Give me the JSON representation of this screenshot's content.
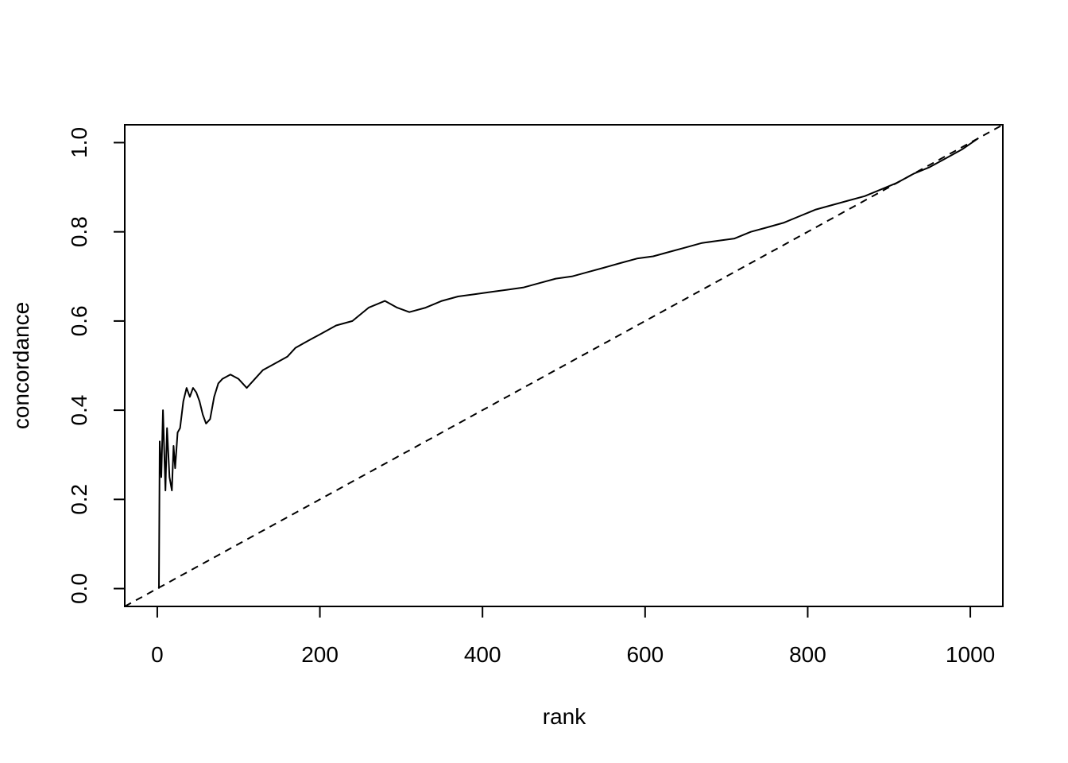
{
  "chart_data": {
    "type": "line",
    "title": "",
    "xlabel": "rank",
    "ylabel": "concordance",
    "xlim": [
      -40,
      1040
    ],
    "ylim": [
      -0.04,
      1.04
    ],
    "x_ticks": [
      0,
      200,
      400,
      600,
      800,
      1000
    ],
    "y_ticks": [
      0.0,
      0.2,
      0.4,
      0.6,
      0.8,
      1.0
    ],
    "x_tick_labels": [
      "0",
      "200",
      "400",
      "600",
      "800",
      "1000"
    ],
    "y_tick_labels": [
      "0.0",
      "0.2",
      "0.4",
      "0.6",
      "0.8",
      "1.0"
    ],
    "grid": false,
    "legend": "none",
    "series": [
      {
        "style": "solid",
        "color": "#000000",
        "points": [
          [
            2,
            0.0
          ],
          [
            3,
            0.33
          ],
          [
            5,
            0.25
          ],
          [
            7,
            0.4
          ],
          [
            10,
            0.22
          ],
          [
            12,
            0.36
          ],
          [
            15,
            0.25
          ],
          [
            18,
            0.22
          ],
          [
            20,
            0.32
          ],
          [
            22,
            0.27
          ],
          [
            25,
            0.35
          ],
          [
            28,
            0.36
          ],
          [
            32,
            0.42
          ],
          [
            36,
            0.45
          ],
          [
            40,
            0.43
          ],
          [
            44,
            0.45
          ],
          [
            48,
            0.44
          ],
          [
            52,
            0.42
          ],
          [
            56,
            0.39
          ],
          [
            60,
            0.37
          ],
          [
            65,
            0.38
          ],
          [
            70,
            0.43
          ],
          [
            75,
            0.46
          ],
          [
            80,
            0.47
          ],
          [
            90,
            0.48
          ],
          [
            100,
            0.47
          ],
          [
            110,
            0.45
          ],
          [
            120,
            0.47
          ],
          [
            130,
            0.49
          ],
          [
            140,
            0.5
          ],
          [
            150,
            0.51
          ],
          [
            160,
            0.52
          ],
          [
            170,
            0.54
          ],
          [
            180,
            0.55
          ],
          [
            190,
            0.56
          ],
          [
            200,
            0.57
          ],
          [
            220,
            0.59
          ],
          [
            240,
            0.6
          ],
          [
            260,
            0.63
          ],
          [
            280,
            0.645
          ],
          [
            295,
            0.63
          ],
          [
            310,
            0.62
          ],
          [
            330,
            0.63
          ],
          [
            350,
            0.645
          ],
          [
            370,
            0.655
          ],
          [
            390,
            0.66
          ],
          [
            410,
            0.665
          ],
          [
            430,
            0.67
          ],
          [
            450,
            0.675
          ],
          [
            470,
            0.685
          ],
          [
            490,
            0.695
          ],
          [
            510,
            0.7
          ],
          [
            530,
            0.71
          ],
          [
            550,
            0.72
          ],
          [
            570,
            0.73
          ],
          [
            590,
            0.74
          ],
          [
            610,
            0.745
          ],
          [
            630,
            0.755
          ],
          [
            650,
            0.765
          ],
          [
            670,
            0.775
          ],
          [
            690,
            0.78
          ],
          [
            710,
            0.785
          ],
          [
            730,
            0.8
          ],
          [
            750,
            0.81
          ],
          [
            770,
            0.82
          ],
          [
            790,
            0.835
          ],
          [
            810,
            0.85
          ],
          [
            830,
            0.86
          ],
          [
            850,
            0.87
          ],
          [
            870,
            0.88
          ],
          [
            890,
            0.895
          ],
          [
            910,
            0.91
          ],
          [
            930,
            0.93
          ],
          [
            950,
            0.945
          ],
          [
            970,
            0.965
          ],
          [
            990,
            0.985
          ],
          [
            1010,
            1.01
          ]
        ]
      },
      {
        "style": "dashed",
        "color": "#000000",
        "points": [
          [
            -40,
            -0.04
          ],
          [
            1040,
            1.04
          ]
        ]
      }
    ]
  }
}
